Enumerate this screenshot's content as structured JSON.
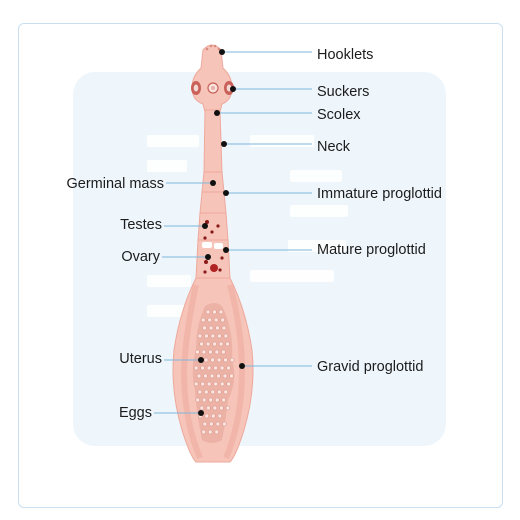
{
  "colors": {
    "background": "#ffffff",
    "card_border": "#c9dff0",
    "panel": "#eef6fc",
    "body_fill": "#f6c4b9",
    "body_shade": "#eea99c",
    "leader_line": "#7fb6dc",
    "dot": "#111111",
    "testes": "#8a1a1a"
  },
  "labels": {
    "hooklets": "Hooklets",
    "suckers": "Suckers",
    "scolex": "Scolex",
    "neck": "Neck",
    "germinal_mass": "Germinal mass",
    "immature_proglottid": "Immature proglottid",
    "testes": "Testes",
    "mature_proglottid": "Mature proglottid",
    "ovary": "Ovary",
    "uterus": "Uterus",
    "gravid_proglottid": "Gravid proglottid",
    "eggs": "Eggs"
  }
}
